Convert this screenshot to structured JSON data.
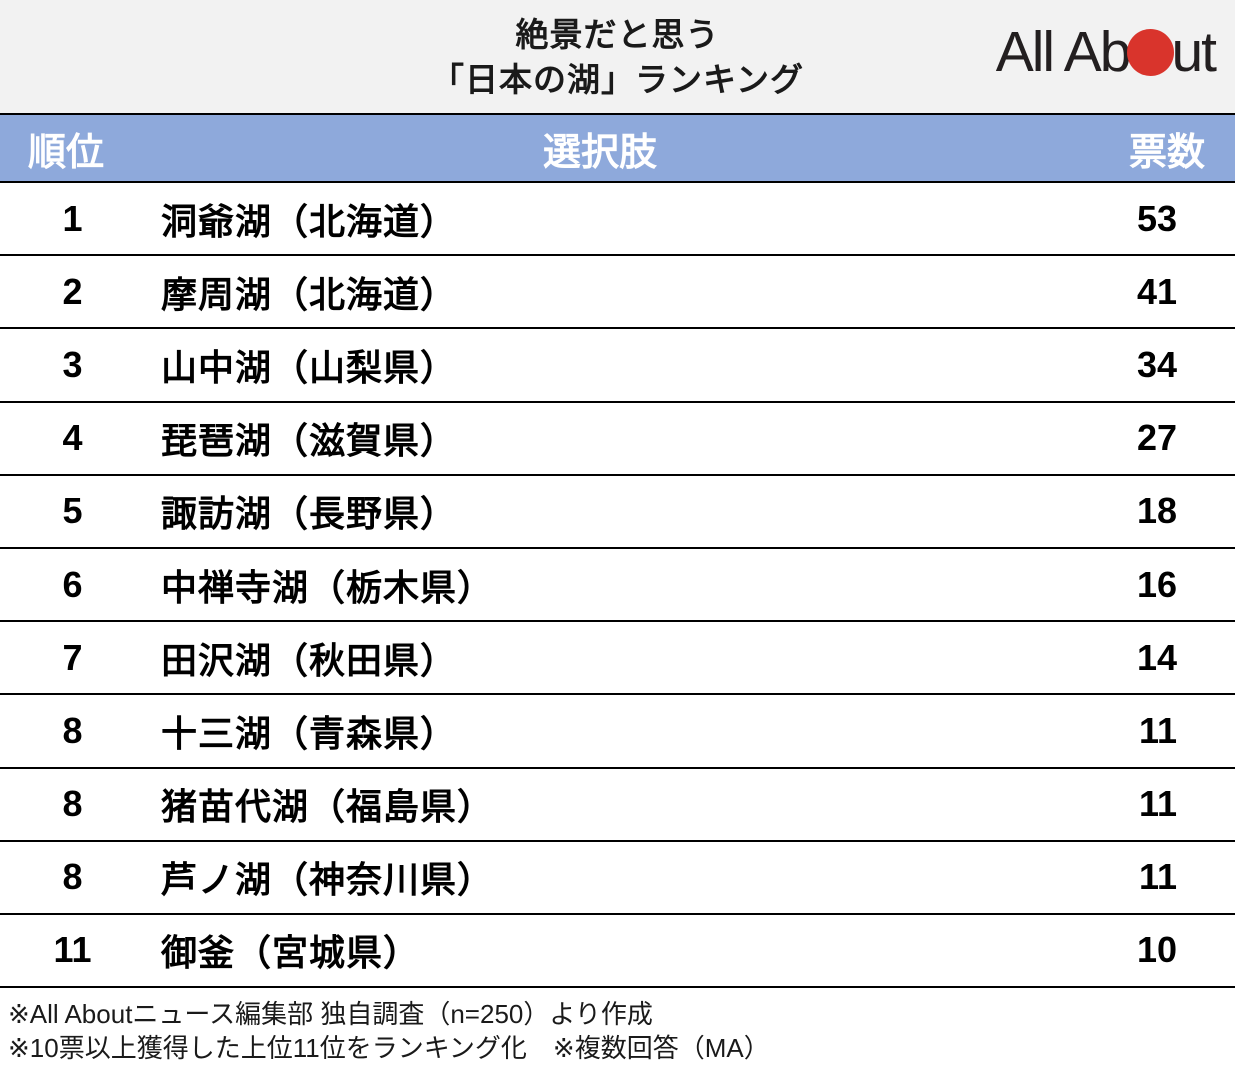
{
  "header": {
    "title_line1": "絶景だと思う",
    "title_line2": "「日本の湖」ランキング",
    "logo": {
      "name": "All About",
      "text_before_dot": "All Ab",
      "text_after_dot": "ut",
      "dot_color": "#d9342c"
    }
  },
  "chart_data": {
    "type": "table",
    "title": "絶景だと思う「日本の湖」ランキング",
    "columns": {
      "rank": "順位",
      "choice": "選択肢",
      "votes": "票数"
    },
    "rows": [
      {
        "rank": "1",
        "choice": "洞爺湖（北海道）",
        "votes": "53"
      },
      {
        "rank": "2",
        "choice": "摩周湖（北海道）",
        "votes": "41"
      },
      {
        "rank": "3",
        "choice": "山中湖（山梨県）",
        "votes": "34"
      },
      {
        "rank": "4",
        "choice": "琵琶湖（滋賀県）",
        "votes": "27"
      },
      {
        "rank": "5",
        "choice": "諏訪湖（長野県）",
        "votes": "18"
      },
      {
        "rank": "6",
        "choice": "中禅寺湖（栃木県）",
        "votes": "16"
      },
      {
        "rank": "7",
        "choice": "田沢湖（秋田県）",
        "votes": "14"
      },
      {
        "rank": "8",
        "choice": "十三湖（青森県）",
        "votes": "11"
      },
      {
        "rank": "8",
        "choice": "猪苗代湖（福島県）",
        "votes": "11"
      },
      {
        "rank": "8",
        "choice": "芦ノ湖（神奈川県）",
        "votes": "11"
      },
      {
        "rank": "11",
        "choice": "御釜（宮城県）",
        "votes": "10"
      }
    ]
  },
  "footnotes": {
    "line1": "※All Aboutニュース編集部 独自調査（n=250）より作成",
    "line2": "※10票以上獲得した上位11位をランキング化　※複数回答（MA）"
  },
  "colors": {
    "title_band_bg": "#f2f2f2",
    "table_header_bg": "#8ea9db",
    "table_header_text": "#ffffff",
    "border": "#000000",
    "logo_red": "#d9342c"
  }
}
